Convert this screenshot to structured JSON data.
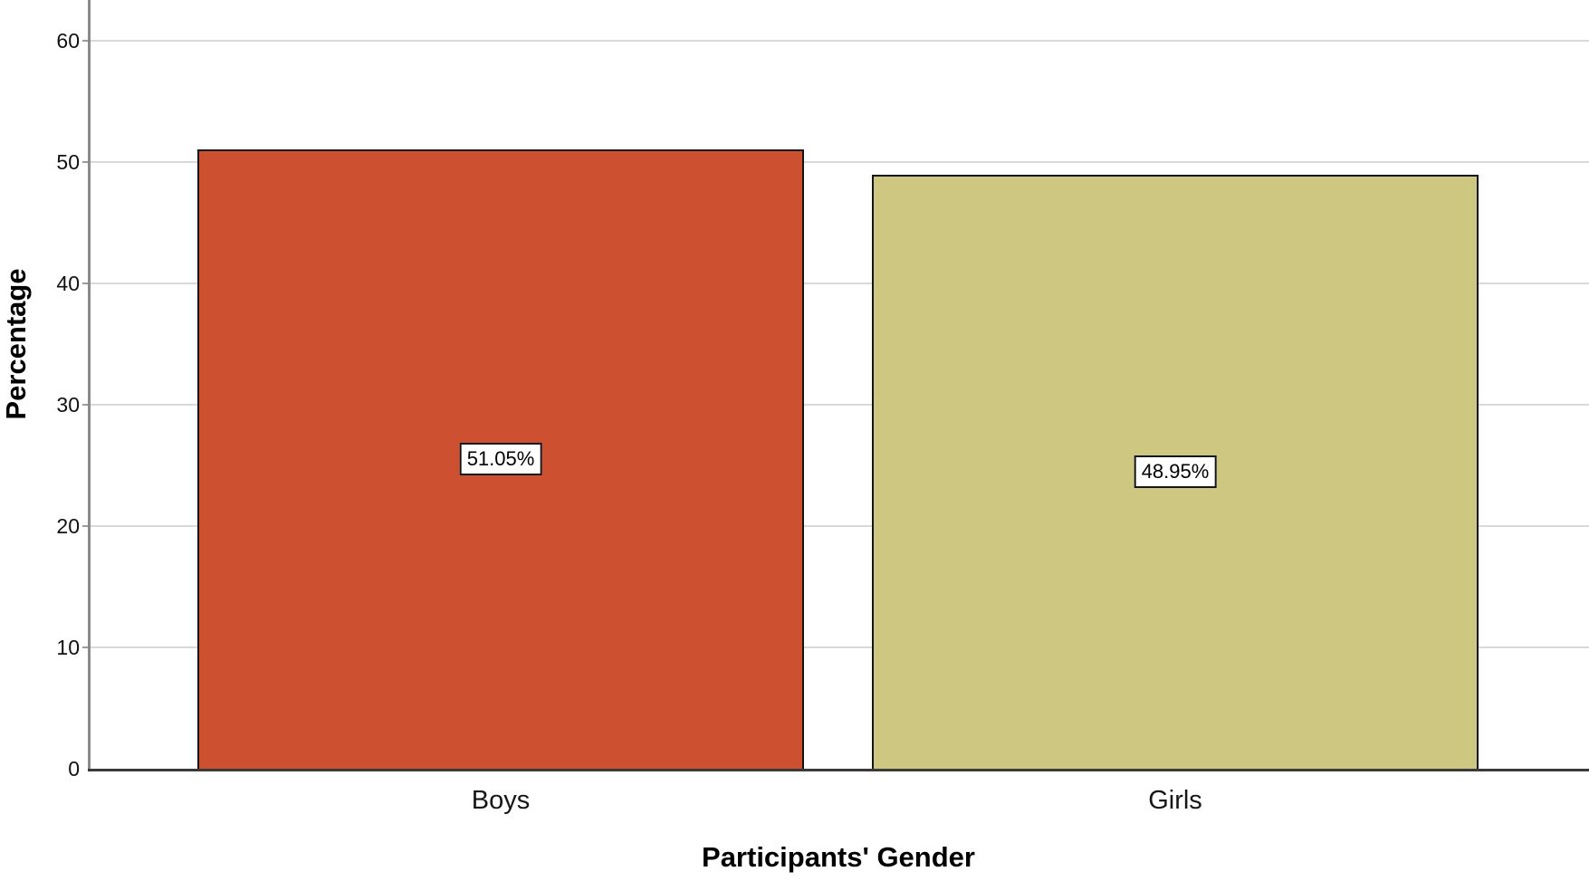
{
  "chart_data": {
    "type": "bar",
    "title": "",
    "xlabel": "Participants' Gender",
    "ylabel": "Percentage",
    "categories": [
      "Boys",
      "Girls"
    ],
    "values": [
      51.05,
      48.95
    ],
    "value_labels": [
      "51.05%",
      "48.95%"
    ],
    "bar_colors": [
      "#CD5130",
      "#CDC781"
    ],
    "yticks": [
      0,
      10,
      20,
      30,
      40,
      50,
      60
    ],
    "ylim": [
      0,
      60
    ],
    "grid": "horizontal-only",
    "legend": "none"
  },
  "colors": {
    "background": "#ffffff",
    "gridline": "#D9D9D9",
    "tick_mark": "#9A9A9A",
    "y_axis_line": "#8A8A8A",
    "x_axis_line": "#3A3A3A",
    "bar_border": "#151515",
    "value_box_bg": "#ffffff",
    "value_box_border": "#151515",
    "text": "#111111"
  }
}
